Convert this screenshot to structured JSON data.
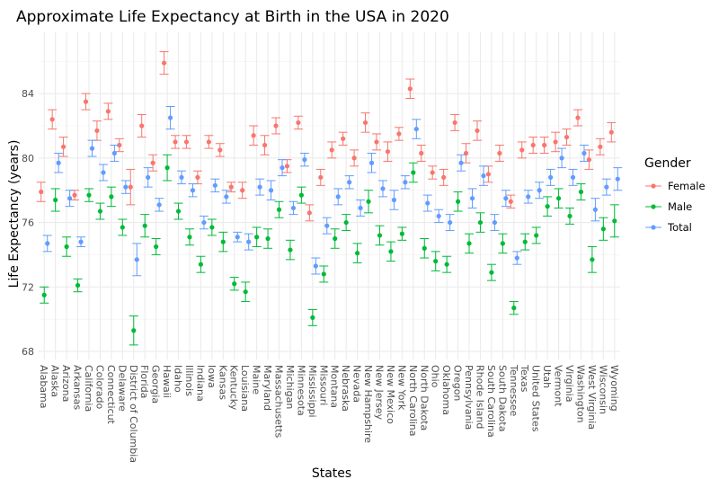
{
  "chart_data": {
    "type": "scatter",
    "title": "Approximate Life Expectancy at Birth in the USA in 2020",
    "xlabel": "States",
    "ylabel": "Life Expectancy (years)",
    "ylim": [
      67.5,
      87.8
    ],
    "yticks": [
      68,
      72,
      76,
      80,
      84
    ],
    "grid": true,
    "legend": {
      "title": "Gender",
      "position": "right"
    },
    "categories": [
      "Alabama",
      "Alaska",
      "Arizona",
      "Arkansas",
      "California",
      "Colorado",
      "Connecticut",
      "Delaware",
      "District of Columbia",
      "Florida",
      "Georgia",
      "Hawaii",
      "Idaho",
      "Illinois",
      "Indiana",
      "Iowa",
      "Kansas",
      "Kentucky",
      "Louisiana",
      "Maine",
      "Maryland",
      "Massachusetts",
      "Michigan",
      "Minnesota",
      "Mississippi",
      "Missouri",
      "Montana",
      "Nebraska",
      "Nevada",
      "New Hampshire",
      "New Jersey",
      "New Mexico",
      "New York",
      "North Carolina",
      "North Dakota",
      "Ohio",
      "Oklahoma",
      "Oregon",
      "Pennsylvania",
      "Rhode Island",
      "South Carolina",
      "South Dakota",
      "Tennessee",
      "Texas",
      "United States",
      "Utah",
      "Vermont",
      "Virginia",
      "Washington",
      "West Virginia",
      "Wisconsin",
      "Wyoming"
    ],
    "series": [
      {
        "name": "Female",
        "color": "#F8766D",
        "values": [
          77.9,
          82.4,
          80.7,
          77.7,
          83.5,
          81.7,
          82.9,
          80.8,
          78.2,
          82.0,
          79.7,
          85.9,
          81.0,
          81.0,
          78.8,
          81.0,
          80.5,
          78.2,
          78.0,
          81.4,
          80.8,
          82.0,
          79.5,
          82.2,
          76.6,
          78.8,
          80.5,
          81.2,
          80.0,
          82.2,
          81.0,
          80.4,
          81.5,
          84.3,
          80.3,
          79.1,
          78.8,
          82.2,
          80.3,
          81.7,
          79.0,
          80.3,
          77.3,
          80.5,
          80.8,
          80.8,
          81.0,
          81.3,
          82.5,
          79.9,
          80.7,
          81.6
        ],
        "lower": [
          77.3,
          81.8,
          80.1,
          77.4,
          83.0,
          81.1,
          82.4,
          80.4,
          77.1,
          81.3,
          79.2,
          85.2,
          80.6,
          80.6,
          78.4,
          80.6,
          80.1,
          77.9,
          77.5,
          80.8,
          80.2,
          81.5,
          79.1,
          81.8,
          76.1,
          78.3,
          80.0,
          80.8,
          79.5,
          81.6,
          80.5,
          79.8,
          81.1,
          83.7,
          79.8,
          78.7,
          78.3,
          81.7,
          79.7,
          81.1,
          78.5,
          79.8,
          76.9,
          80.0,
          80.3,
          80.3,
          80.4,
          80.8,
          82.0,
          79.3,
          80.2,
          81.0
        ],
        "upper": [
          78.5,
          83.0,
          81.3,
          78.0,
          84.0,
          82.3,
          83.4,
          81.2,
          79.3,
          82.7,
          80.2,
          86.6,
          81.4,
          81.4,
          79.2,
          81.4,
          80.9,
          78.5,
          78.5,
          82.0,
          81.4,
          82.5,
          79.9,
          82.6,
          77.1,
          79.3,
          81.0,
          81.6,
          80.5,
          82.8,
          81.5,
          81.0,
          81.9,
          84.9,
          80.8,
          79.5,
          79.3,
          82.7,
          80.9,
          82.3,
          79.5,
          80.8,
          77.7,
          81.0,
          81.3,
          81.3,
          81.6,
          81.8,
          83.0,
          80.5,
          81.2,
          82.2
        ]
      },
      {
        "name": "Male",
        "color": "#00BA38",
        "values": [
          71.5,
          77.4,
          74.5,
          72.1,
          77.7,
          76.7,
          77.6,
          75.7,
          69.3,
          75.8,
          74.5,
          79.4,
          76.7,
          75.1,
          73.4,
          75.7,
          74.8,
          72.2,
          71.7,
          75.1,
          75.0,
          76.8,
          74.3,
          77.7,
          70.1,
          72.8,
          75.0,
          76.0,
          74.1,
          77.3,
          75.2,
          74.2,
          75.3,
          79.1,
          74.4,
          73.6,
          73.4,
          77.3,
          74.7,
          76.0,
          72.9,
          74.7,
          70.7,
          74.8,
          75.2,
          77.0,
          77.5,
          76.4,
          77.9,
          73.7,
          75.6,
          76.1
        ],
        "lower": [
          71.0,
          76.7,
          73.9,
          71.7,
          77.3,
          76.2,
          77.0,
          75.2,
          68.4,
          75.1,
          74.0,
          78.6,
          76.2,
          74.6,
          72.9,
          75.2,
          74.2,
          71.8,
          71.1,
          74.5,
          74.4,
          76.3,
          73.7,
          77.2,
          69.6,
          72.3,
          74.4,
          75.5,
          73.5,
          76.6,
          74.6,
          73.6,
          74.9,
          78.5,
          73.8,
          73.0,
          72.9,
          76.7,
          74.1,
          75.4,
          72.4,
          74.1,
          70.3,
          74.3,
          74.7,
          76.4,
          76.9,
          75.9,
          77.4,
          72.9,
          74.9,
          75.1
        ],
        "upper": [
          72.0,
          78.1,
          75.1,
          72.5,
          78.1,
          77.2,
          78.2,
          76.2,
          70.2,
          76.5,
          75.0,
          80.2,
          77.2,
          75.6,
          73.9,
          76.2,
          75.4,
          72.6,
          72.3,
          75.7,
          75.6,
          77.3,
          74.9,
          78.2,
          70.6,
          73.3,
          75.6,
          76.5,
          74.7,
          78.0,
          75.8,
          74.8,
          75.7,
          79.7,
          75.0,
          74.2,
          73.9,
          77.9,
          75.3,
          76.6,
          73.4,
          75.3,
          71.1,
          75.3,
          75.7,
          77.6,
          78.1,
          76.9,
          78.4,
          74.5,
          76.3,
          77.1
        ]
      },
      {
        "name": "Total",
        "color": "#619CFF",
        "values": [
          74.7,
          79.7,
          77.5,
          74.8,
          80.6,
          79.1,
          80.3,
          78.2,
          73.7,
          78.8,
          77.1,
          82.5,
          78.8,
          78.0,
          76.0,
          78.3,
          77.6,
          75.1,
          74.8,
          78.2,
          78.0,
          79.4,
          76.9,
          79.9,
          73.3,
          75.8,
          77.6,
          78.5,
          76.9,
          79.7,
          78.1,
          77.4,
          78.5,
          81.8,
          77.2,
          76.4,
          76.0,
          79.7,
          77.5,
          78.9,
          76.0,
          77.5,
          73.8,
          77.6,
          78.0,
          78.8,
          80.0,
          78.8,
          80.3,
          76.8,
          78.2,
          78.7
        ],
        "lower": [
          74.2,
          79.1,
          77.0,
          74.5,
          80.1,
          78.6,
          79.8,
          77.8,
          72.7,
          78.2,
          76.7,
          81.8,
          78.4,
          77.6,
          75.6,
          77.9,
          77.2,
          74.8,
          74.3,
          77.7,
          77.4,
          78.9,
          76.5,
          79.5,
          72.8,
          75.3,
          77.1,
          78.1,
          76.4,
          79.1,
          77.6,
          76.8,
          78.1,
          81.2,
          76.7,
          76.0,
          75.5,
          79.2,
          76.9,
          78.3,
          75.5,
          77.0,
          73.4,
          77.2,
          77.5,
          78.3,
          79.4,
          78.3,
          79.8,
          76.1,
          77.7,
          78.0
        ],
        "upper": [
          75.2,
          80.3,
          78.0,
          75.1,
          81.1,
          79.6,
          80.8,
          78.6,
          74.7,
          79.4,
          77.5,
          83.2,
          79.2,
          78.4,
          76.4,
          78.7,
          78.0,
          75.4,
          75.3,
          78.7,
          78.6,
          79.9,
          77.3,
          80.3,
          73.8,
          76.3,
          78.1,
          78.9,
          77.4,
          80.3,
          78.6,
          78.0,
          78.9,
          82.4,
          77.7,
          76.8,
          76.5,
          80.2,
          78.1,
          79.5,
          76.5,
          78.0,
          74.2,
          78.0,
          78.5,
          79.3,
          80.6,
          79.3,
          80.8,
          77.5,
          78.7,
          79.4
        ]
      }
    ]
  }
}
